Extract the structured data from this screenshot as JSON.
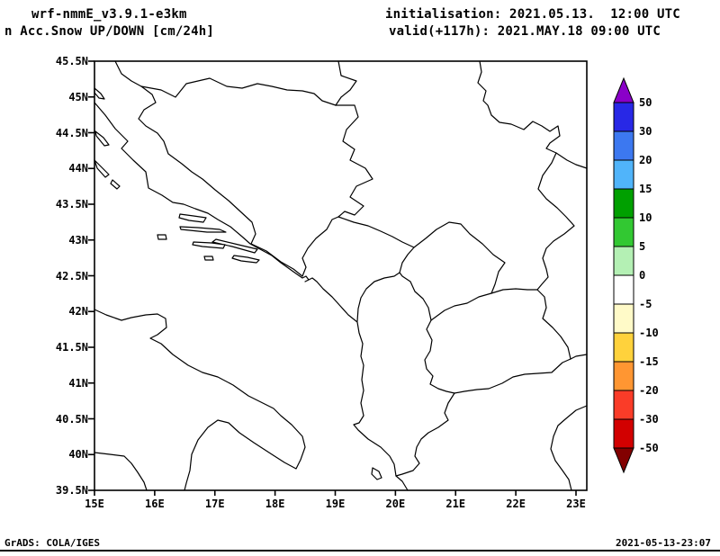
{
  "header": {
    "model": "wrf-nmmE_v3.9.1-e3km",
    "product": "n Acc.Snow UP/DOWN [cm/24h]",
    "init_label": "initialisation: 2021.05.13.  12:00 UTC",
    "valid_label": "valid(+117h): 2021.MAY.18 09:00 UTC"
  },
  "footer": {
    "grads_credit": "GrADS: COLA/IGES",
    "timestamp": "2021-05-13-23:07"
  },
  "axes": {
    "y_ticks": [
      "45.5N",
      "45N",
      "44.5N",
      "44N",
      "43.5N",
      "43N",
      "42.5N",
      "42N",
      "41.5N",
      "41N",
      "40.5N",
      "40N",
      "39.5N"
    ],
    "x_ticks": [
      "15E",
      "16E",
      "17E",
      "18E",
      "19E",
      "20E",
      "21E",
      "22E",
      "23E"
    ]
  },
  "colorbar": {
    "labels": [
      "50",
      "30",
      "20",
      "15",
      "10",
      "5",
      "0",
      "-5",
      "-10",
      "-15",
      "-20",
      "-30",
      "-50"
    ],
    "arrow_top_color": "#8a00c8",
    "band_colors": [
      "#2828e6",
      "#3c78f0",
      "#50b4fa",
      "#00a000",
      "#32c832",
      "#b4f0b4",
      "#ffffff",
      "#fffac8",
      "#ffd23c",
      "#ff9632",
      "#fa3c28",
      "#d20000"
    ],
    "arrow_bottom_color": "#820000",
    "outline_color": "#000000"
  },
  "plot": {
    "line_color": "#000000",
    "region": "Adriatic / Balkans"
  }
}
